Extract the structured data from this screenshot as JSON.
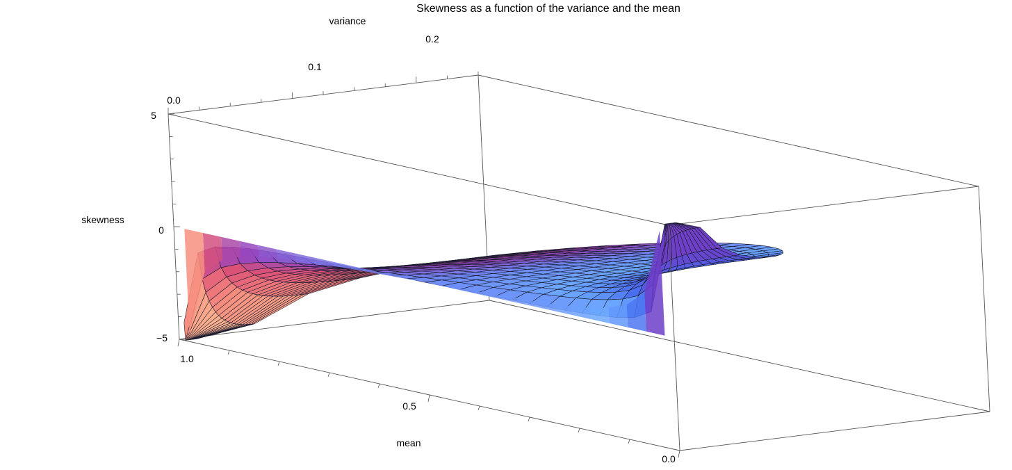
{
  "chart_data": {
    "type": "surface3d",
    "title": "Skewness as a function of the variance and the mean",
    "xlabel": "mean",
    "ylabel": "variance",
    "zlabel": "skewness",
    "x_ticks": [
      "0.0",
      "0.5",
      "1.0"
    ],
    "y_ticks": [
      "0.0",
      "0.1",
      "0.2"
    ],
    "z_ticks": [
      "5",
      "0",
      "−5"
    ],
    "xlim": [
      0,
      1
    ],
    "ylim": [
      0,
      0.25
    ],
    "zlim": [
      -5,
      5
    ],
    "box": true,
    "function": "skewness of a beta distribution with mean m and variance v: 2(1-2m)·sqrt(v) / (m(1-m) + v)",
    "domain": "0 < v < m(1-m)",
    "colors": {
      "high": "#ffb08a",
      "mid": "#e2507a",
      "low": "#7442c8",
      "plateau": "#6fa8ff"
    }
  }
}
